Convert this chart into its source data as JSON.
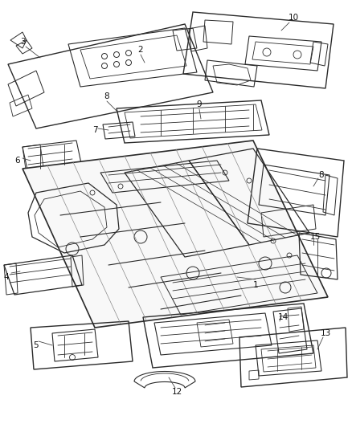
{
  "background_color": "#ffffff",
  "line_color": "#2a2a2a",
  "label_color": "#111111",
  "fig_width": 4.38,
  "fig_height": 5.33,
  "dpi": 100
}
